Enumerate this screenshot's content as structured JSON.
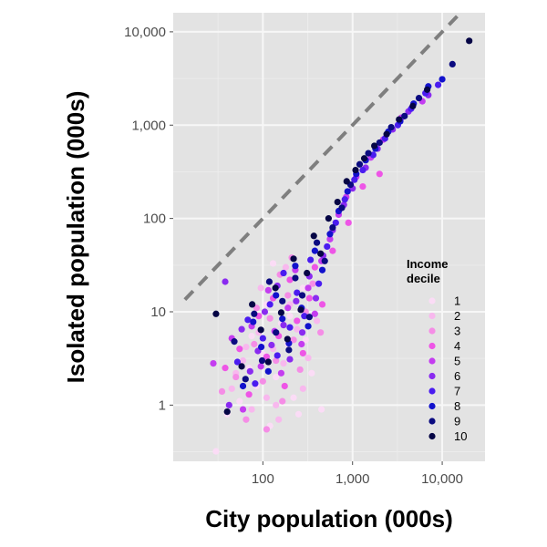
{
  "chart_data": {
    "type": "scatter",
    "title": "",
    "xlabel": "City population (000s)",
    "ylabel": "Isolated population (000s)",
    "x_scale": "log",
    "y_scale": "log",
    "xlim": [
      10,
      30000
    ],
    "ylim": [
      0.25,
      16000
    ],
    "x_ticks": [
      100,
      1000,
      10000
    ],
    "x_tick_labels": [
      "100",
      "1,000",
      "10,000"
    ],
    "y_ticks": [
      1,
      10,
      100,
      1000,
      10000
    ],
    "y_tick_labels": [
      "1",
      "10",
      "100",
      "1,000",
      "10,000"
    ],
    "grid": true,
    "reference_line": {
      "style": "dashed",
      "color": "#7f7f7f",
      "relation": "y = x"
    },
    "legend": {
      "title_lines": [
        "Income",
        "decile"
      ],
      "placement": "right, inside plot",
      "entries": [
        "1",
        "2",
        "3",
        "4",
        "5",
        "6",
        "7",
        "8",
        "9",
        "10"
      ],
      "colors": [
        "#fbdcf6",
        "#f8b8ee",
        "#f58de6",
        "#ee55e6",
        "#c43df0",
        "#8a2bf0",
        "#4a1cf0",
        "#1212cc",
        "#0b0b80",
        "#050545"
      ]
    },
    "series": [
      {
        "name": "1",
        "points": [
          [
            40,
            0.8
          ],
          [
            55,
            1.1
          ],
          [
            70,
            2.5
          ],
          [
            85,
            1.6
          ],
          [
            100,
            3.5
          ],
          [
            120,
            0.6
          ],
          [
            140,
            2.0
          ],
          [
            160,
            7.5
          ],
          [
            190,
            4.5
          ],
          [
            220,
            1.2
          ],
          [
            250,
            0.8
          ],
          [
            300,
            5.0
          ],
          [
            350,
            2.2
          ],
          [
            450,
            0.9
          ],
          [
            30,
            0.32
          ],
          [
            110,
            12
          ],
          [
            130,
            33
          ],
          [
            200,
            9.0
          ],
          [
            280,
            18
          ],
          [
            75,
            5.5
          ]
        ]
      },
      {
        "name": "2",
        "points": [
          [
            45,
            1.5
          ],
          [
            60,
            3.0
          ],
          [
            75,
            0.9
          ],
          [
            90,
            6.0
          ],
          [
            110,
            1.2
          ],
          [
            130,
            4.0
          ],
          [
            150,
            0.7
          ],
          [
            170,
            2.8
          ],
          [
            200,
            12
          ],
          [
            240,
            6.5
          ],
          [
            280,
            1.5
          ],
          [
            320,
            3.2
          ],
          [
            400,
            8.0
          ],
          [
            50,
            2.2
          ],
          [
            95,
            18
          ],
          [
            180,
            30
          ],
          [
            65,
            4.2
          ],
          [
            140,
            1.0
          ]
        ]
      },
      {
        "name": "3",
        "points": [
          [
            50,
            2.0
          ],
          [
            65,
            0.7
          ],
          [
            80,
            4.5
          ],
          [
            100,
            1.8
          ],
          [
            120,
            8.5
          ],
          [
            140,
            3.0
          ],
          [
            165,
            1.1
          ],
          [
            190,
            15
          ],
          [
            220,
            5.0
          ],
          [
            260,
            2.4
          ],
          [
            300,
            10
          ],
          [
            360,
            20
          ],
          [
            440,
            6.0
          ],
          [
            35,
            1.4
          ],
          [
            85,
            11
          ],
          [
            155,
            25
          ],
          [
            210,
            38
          ],
          [
            110,
            0.55
          ]
        ]
      },
      {
        "name": "4",
        "points": [
          [
            38,
            2.5
          ],
          [
            55,
            4.0
          ],
          [
            70,
            1.3
          ],
          [
            90,
            9.0
          ],
          [
            110,
            3.3
          ],
          [
            130,
            14
          ],
          [
            150,
            5.5
          ],
          [
            175,
            1.6
          ],
          [
            200,
            22
          ],
          [
            240,
            8.0
          ],
          [
            280,
            3.6
          ],
          [
            330,
            14
          ],
          [
            380,
            30
          ],
          [
            460,
            12
          ],
          [
            600,
            45
          ],
          [
            900,
            90
          ],
          [
            1300,
            220
          ],
          [
            2000,
            300
          ]
        ]
      },
      {
        "name": "5",
        "points": [
          [
            28,
            2.8
          ],
          [
            45,
            5.2
          ],
          [
            60,
            0.9
          ],
          [
            75,
            7.0
          ],
          [
            95,
            2.6
          ],
          [
            115,
            17
          ],
          [
            135,
            6.2
          ],
          [
            160,
            2.2
          ],
          [
            190,
            11
          ],
          [
            230,
            28
          ],
          [
            270,
            4.5
          ],
          [
            320,
            18
          ],
          [
            380,
            9.5
          ],
          [
            450,
            35
          ],
          [
            560,
            60
          ],
          [
            700,
            110
          ],
          [
            850,
            170
          ],
          [
            1100,
            280
          ],
          [
            1600,
            450
          ],
          [
            2200,
            700
          ],
          [
            3500,
            1200
          ],
          [
            6000,
            1800
          ]
        ]
      },
      {
        "name": "6",
        "points": [
          [
            42,
            1.0
          ],
          [
            58,
            6.5
          ],
          [
            72,
            2.3
          ],
          [
            88,
            3.8
          ],
          [
            105,
            10
          ],
          [
            125,
            4.4
          ],
          [
            145,
            19
          ],
          [
            170,
            7.2
          ],
          [
            200,
            3.1
          ],
          [
            235,
            13
          ],
          [
            275,
            6.0
          ],
          [
            330,
            24
          ],
          [
            390,
            14
          ],
          [
            470,
            40
          ],
          [
            600,
            75
          ],
          [
            800,
            140
          ],
          [
            1000,
            210
          ],
          [
            1400,
            350
          ],
          [
            1900,
            560
          ],
          [
            2800,
            900
          ],
          [
            4200,
            1400
          ],
          [
            7000,
            2100
          ],
          [
            38,
            21
          ]
        ]
      },
      {
        "name": "7",
        "points": [
          [
            52,
            2.9
          ],
          [
            68,
            8.2
          ],
          [
            82,
            1.7
          ],
          [
            100,
            5.2
          ],
          [
            120,
            12
          ],
          [
            145,
            3.4
          ],
          [
            170,
            26
          ],
          [
            200,
            6.8
          ],
          [
            240,
            16
          ],
          [
            290,
            9.0
          ],
          [
            340,
            36
          ],
          [
            420,
            20
          ],
          [
            520,
            50
          ],
          [
            650,
            90
          ],
          [
            820,
            160
          ],
          [
            1050,
            260
          ],
          [
            1300,
            330
          ],
          [
            1700,
            480
          ],
          [
            2300,
            720
          ],
          [
            3200,
            1000
          ],
          [
            4500,
            1500
          ],
          [
            6500,
            2200
          ],
          [
            9000,
            2700
          ]
        ]
      },
      {
        "name": "8",
        "points": [
          [
            60,
            1.6
          ],
          [
            78,
            7.8
          ],
          [
            96,
            4.2
          ],
          [
            115,
            2.3
          ],
          [
            140,
            15
          ],
          [
            165,
            8.4
          ],
          [
            195,
            4.6
          ],
          [
            230,
            31
          ],
          [
            270,
            11
          ],
          [
            320,
            7.0
          ],
          [
            380,
            45
          ],
          [
            460,
            28
          ],
          [
            560,
            68
          ],
          [
            700,
            120
          ],
          [
            880,
            195
          ],
          [
            1100,
            300
          ],
          [
            1400,
            420
          ],
          [
            1800,
            560
          ],
          [
            2500,
            850
          ],
          [
            3400,
            1100
          ],
          [
            4800,
            1700
          ],
          [
            7000,
            2600
          ],
          [
            10000,
            3100
          ]
        ]
      },
      {
        "name": "9",
        "points": [
          [
            48,
            4.8
          ],
          [
            64,
            1.9
          ],
          [
            80,
            9.5
          ],
          [
            98,
            3.0
          ],
          [
            118,
            21
          ],
          [
            140,
            6.0
          ],
          [
            165,
            13
          ],
          [
            195,
            3.9
          ],
          [
            230,
            23
          ],
          [
            275,
            15
          ],
          [
            330,
            8.8
          ],
          [
            400,
            55
          ],
          [
            490,
            35
          ],
          [
            600,
            80
          ],
          [
            760,
            130
          ],
          [
            950,
            230
          ],
          [
            1200,
            380
          ],
          [
            1500,
            500
          ],
          [
            2000,
            650
          ],
          [
            2700,
            950
          ],
          [
            3800,
            1250
          ],
          [
            5500,
            1950
          ],
          [
            13000,
            4500
          ]
        ]
      },
      {
        "name": "10",
        "points": [
          [
            30,
            9.5
          ],
          [
            40,
            0.85
          ],
          [
            58,
            2.6
          ],
          [
            76,
            12
          ],
          [
            95,
            6.4
          ],
          [
            115,
            2.9
          ],
          [
            138,
            18
          ],
          [
            160,
            9.8
          ],
          [
            188,
            5.1
          ],
          [
            220,
            37
          ],
          [
            265,
            10.5
          ],
          [
            310,
            26
          ],
          [
            370,
            65
          ],
          [
            440,
            42
          ],
          [
            540,
            100
          ],
          [
            680,
            150
          ],
          [
            860,
            250
          ],
          [
            1080,
            330
          ],
          [
            1350,
            440
          ],
          [
            1750,
            600
          ],
          [
            2400,
            800
          ],
          [
            3300,
            1150
          ],
          [
            4700,
            1600
          ],
          [
            6800,
            2400
          ],
          [
            20000,
            8000
          ]
        ]
      }
    ]
  }
}
